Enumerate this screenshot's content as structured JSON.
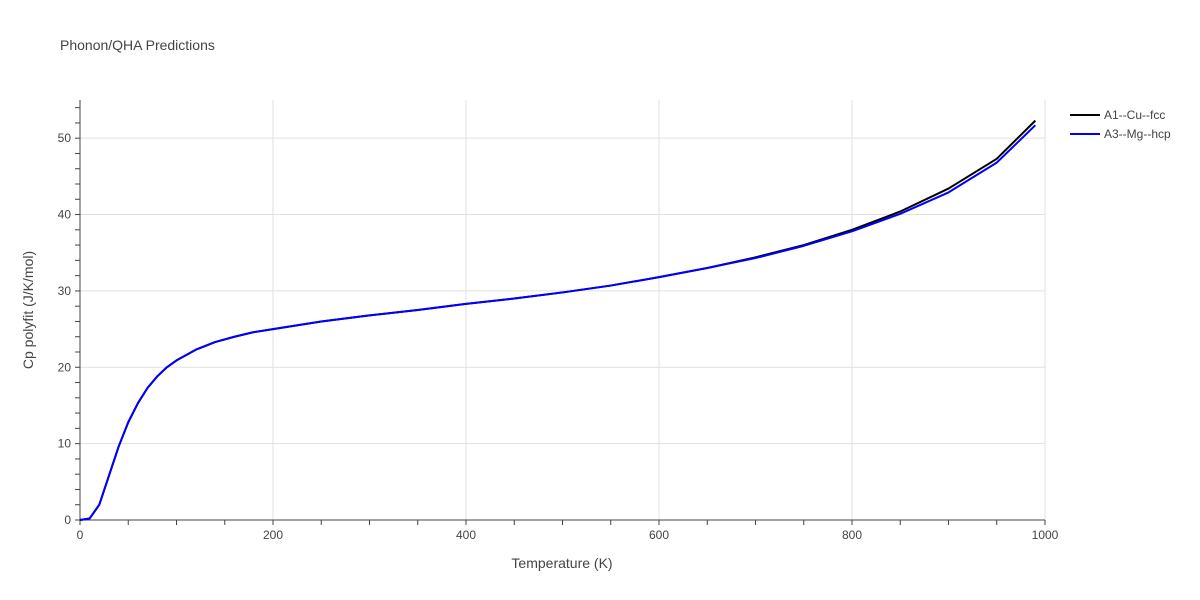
{
  "chart_data": {
    "type": "line",
    "title": "Phonon/QHA Predictions",
    "xlabel": "Temperature (K)",
    "ylabel": "Cp polyfit (J/K/mol)",
    "xlim": [
      0,
      1000
    ],
    "ylim": [
      0,
      55
    ],
    "xticks": [
      0,
      200,
      400,
      600,
      800,
      1000
    ],
    "yticks": [
      0,
      10,
      20,
      30,
      40,
      50
    ],
    "grid": true,
    "legend_position": "top-right",
    "series": [
      {
        "name": "A1--Cu--fcc",
        "color": "#000000",
        "x": [
          0,
          10,
          20,
          30,
          40,
          50,
          60,
          70,
          80,
          90,
          100,
          120,
          140,
          160,
          180,
          200,
          250,
          300,
          350,
          400,
          450,
          500,
          550,
          600,
          650,
          700,
          750,
          800,
          850,
          900,
          950,
          990
        ],
        "y": [
          0,
          0.2,
          2.0,
          5.8,
          9.6,
          12.8,
          15.3,
          17.3,
          18.8,
          20.0,
          20.9,
          22.3,
          23.3,
          24.0,
          24.6,
          25.0,
          26.0,
          26.8,
          27.5,
          28.3,
          29.0,
          29.8,
          30.7,
          31.8,
          33.0,
          34.4,
          36.0,
          38.0,
          40.4,
          43.4,
          47.3,
          52.3
        ]
      },
      {
        "name": "A3--Mg--hcp",
        "color": "#0000ff",
        "x": [
          0,
          10,
          20,
          30,
          40,
          50,
          60,
          70,
          80,
          90,
          100,
          120,
          140,
          160,
          180,
          200,
          250,
          300,
          350,
          400,
          450,
          500,
          550,
          600,
          650,
          700,
          750,
          800,
          850,
          900,
          950,
          990
        ],
        "y": [
          0,
          0.2,
          2.0,
          5.8,
          9.6,
          12.8,
          15.3,
          17.3,
          18.8,
          20.0,
          20.9,
          22.3,
          23.3,
          24.0,
          24.6,
          25.0,
          26.0,
          26.8,
          27.5,
          28.3,
          29.0,
          29.8,
          30.7,
          31.8,
          33.0,
          34.3,
          35.9,
          37.8,
          40.1,
          42.9,
          46.8,
          51.7
        ]
      }
    ]
  }
}
